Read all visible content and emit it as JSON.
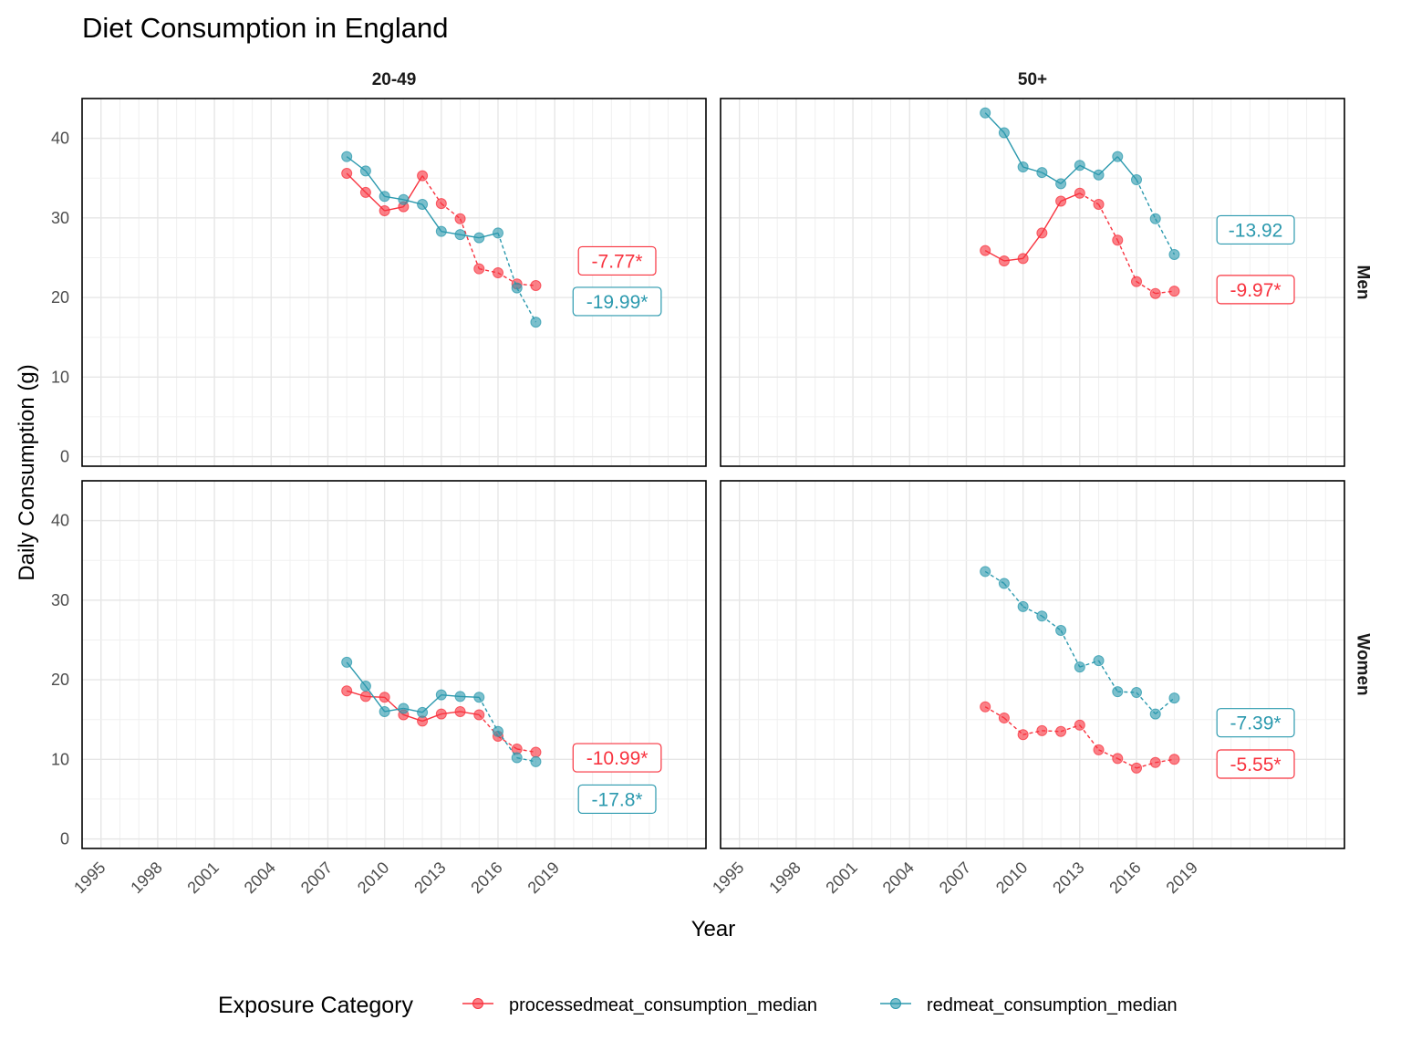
{
  "chart_data": {
    "type": "line",
    "title": "Diet Consumption in England",
    "xlabel": "Year",
    "ylabel": "Daily Consumption (g)",
    "xlim": [
      1994,
      2027
    ],
    "ylim": [
      -1.2,
      45
    ],
    "x_ticks": [
      1995,
      1998,
      2001,
      2004,
      2007,
      2010,
      2013,
      2016,
      2019
    ],
    "y_ticks": [
      0,
      10,
      20,
      30,
      40
    ],
    "grid": true,
    "legend": {
      "title": "Exposure Category",
      "position": "bottom",
      "entries": [
        "processedmeat_consumption_median",
        "redmeat_consumption_median"
      ]
    },
    "colors": {
      "processedmeat_consumption_median": "#F8333F",
      "redmeat_consumption_median": "#2B99AE"
    },
    "columns": [
      "20-49",
      "50+"
    ],
    "rows": [
      "Men",
      "Women"
    ],
    "panels": [
      {
        "column": "20-49",
        "row": "Men",
        "series": [
          {
            "name": "processedmeat_consumption_median",
            "x": [
              2008,
              2009,
              2010,
              2011,
              2012,
              2013,
              2014,
              2015,
              2016,
              2017,
              2018
            ],
            "y": [
              35.6,
              33.2,
              30.9,
              31.4,
              35.3,
              31.8,
              29.9,
              23.6,
              23.1,
              21.7,
              21.5
            ],
            "segments": [
              "solid",
              "solid",
              "solid",
              "solid",
              "dashed",
              "dashed",
              "dashed",
              "dashed",
              "dashed",
              "dashed"
            ]
          },
          {
            "name": "redmeat_consumption_median",
            "x": [
              2008,
              2009,
              2010,
              2011,
              2012,
              2013,
              2014,
              2015,
              2016,
              2017,
              2018
            ],
            "y": [
              37.7,
              35.9,
              32.7,
              32.3,
              31.7,
              28.3,
              27.9,
              27.5,
              28.1,
              21.2,
              16.9
            ],
            "segments": [
              "solid",
              "solid",
              "solid",
              "solid",
              "solid",
              "solid",
              "solid",
              "solid",
              "dashed",
              "dashed"
            ]
          }
        ],
        "annotations": [
          {
            "series": "processedmeat_consumption_median",
            "text": "-7.77*",
            "x": 2022.3,
            "y": 24.6
          },
          {
            "series": "redmeat_consumption_median",
            "text": "-19.99*",
            "x": 2022.3,
            "y": 19.5
          }
        ]
      },
      {
        "column": "50+",
        "row": "Men",
        "series": [
          {
            "name": "processedmeat_consumption_median",
            "x": [
              2008,
              2009,
              2010,
              2011,
              2012,
              2013,
              2014,
              2015,
              2016,
              2017,
              2018
            ],
            "y": [
              25.9,
              24.6,
              24.9,
              28.1,
              32.1,
              33.1,
              31.7,
              27.2,
              22.0,
              20.5,
              20.8
            ],
            "segments": [
              "solid",
              "solid",
              "solid",
              "solid",
              "solid",
              "dashed",
              "dashed",
              "dashed",
              "dashed",
              "dashed"
            ]
          },
          {
            "name": "redmeat_consumption_median",
            "x": [
              2008,
              2009,
              2010,
              2011,
              2012,
              2013,
              2014,
              2015,
              2016,
              2017,
              2018
            ],
            "y": [
              43.2,
              40.7,
              36.4,
              35.7,
              34.3,
              36.6,
              35.4,
              37.7,
              34.8,
              29.9,
              25.4
            ],
            "segments": [
              "solid",
              "solid",
              "solid",
              "solid",
              "solid",
              "solid",
              "solid",
              "solid",
              "dashed",
              "dashed"
            ]
          }
        ],
        "annotations": [
          {
            "series": "redmeat_consumption_median",
            "text": "-13.92",
            "x": 2022.3,
            "y": 28.5
          },
          {
            "series": "processedmeat_consumption_median",
            "text": "-9.97*",
            "x": 2022.3,
            "y": 21.0
          }
        ]
      },
      {
        "column": "20-49",
        "row": "Women",
        "series": [
          {
            "name": "processedmeat_consumption_median",
            "x": [
              2008,
              2009,
              2010,
              2011,
              2012,
              2013,
              2014,
              2015,
              2016,
              2017,
              2018
            ],
            "y": [
              18.6,
              17.9,
              17.8,
              15.6,
              14.8,
              15.7,
              16.0,
              15.6,
              12.9,
              11.3,
              10.9
            ],
            "segments": [
              "solid",
              "solid",
              "solid",
              "solid",
              "solid",
              "solid",
              "solid",
              "dashed",
              "dashed",
              "dashed"
            ]
          },
          {
            "name": "redmeat_consumption_median",
            "x": [
              2008,
              2009,
              2010,
              2011,
              2012,
              2013,
              2014,
              2015,
              2016,
              2017,
              2018
            ],
            "y": [
              22.2,
              19.2,
              16.0,
              16.4,
              15.9,
              18.1,
              17.9,
              17.8,
              13.5,
              10.2,
              9.7
            ],
            "segments": [
              "solid",
              "solid",
              "solid",
              "solid",
              "solid",
              "solid",
              "solid",
              "dashed",
              "dashed",
              "dashed"
            ]
          }
        ],
        "annotations": [
          {
            "series": "processedmeat_consumption_median",
            "text": "-10.99*",
            "x": 2022.3,
            "y": 10.2
          },
          {
            "series": "redmeat_consumption_median",
            "text": "-17.8*",
            "x": 2022.3,
            "y": 5.0
          }
        ]
      },
      {
        "column": "50+",
        "row": "Women",
        "series": [
          {
            "name": "processedmeat_consumption_median",
            "x": [
              2008,
              2009,
              2010,
              2011,
              2012,
              2013,
              2014,
              2015,
              2016,
              2017,
              2018
            ],
            "y": [
              16.6,
              15.2,
              13.1,
              13.6,
              13.5,
              14.3,
              11.2,
              10.1,
              8.9,
              9.6,
              10.0
            ],
            "segments": [
              "dashed",
              "dashed",
              "dashed",
              "dashed",
              "dashed",
              "dashed",
              "dashed",
              "dashed",
              "dashed",
              "dashed"
            ]
          },
          {
            "name": "redmeat_consumption_median",
            "x": [
              2008,
              2009,
              2010,
              2011,
              2012,
              2013,
              2014,
              2015,
              2016,
              2017,
              2018
            ],
            "y": [
              33.6,
              32.1,
              29.2,
              28.0,
              26.2,
              21.6,
              22.4,
              18.5,
              18.4,
              15.7,
              17.7
            ],
            "segments": [
              "dashed",
              "dashed",
              "dashed",
              "dashed",
              "dashed",
              "dashed",
              "dashed",
              "dashed",
              "dashed",
              "dashed"
            ]
          }
        ],
        "annotations": [
          {
            "series": "redmeat_consumption_median",
            "text": "-7.39*",
            "x": 2022.3,
            "y": 14.6
          },
          {
            "series": "processedmeat_consumption_median",
            "text": "-5.55*",
            "x": 2022.3,
            "y": 9.4
          }
        ]
      }
    ]
  }
}
